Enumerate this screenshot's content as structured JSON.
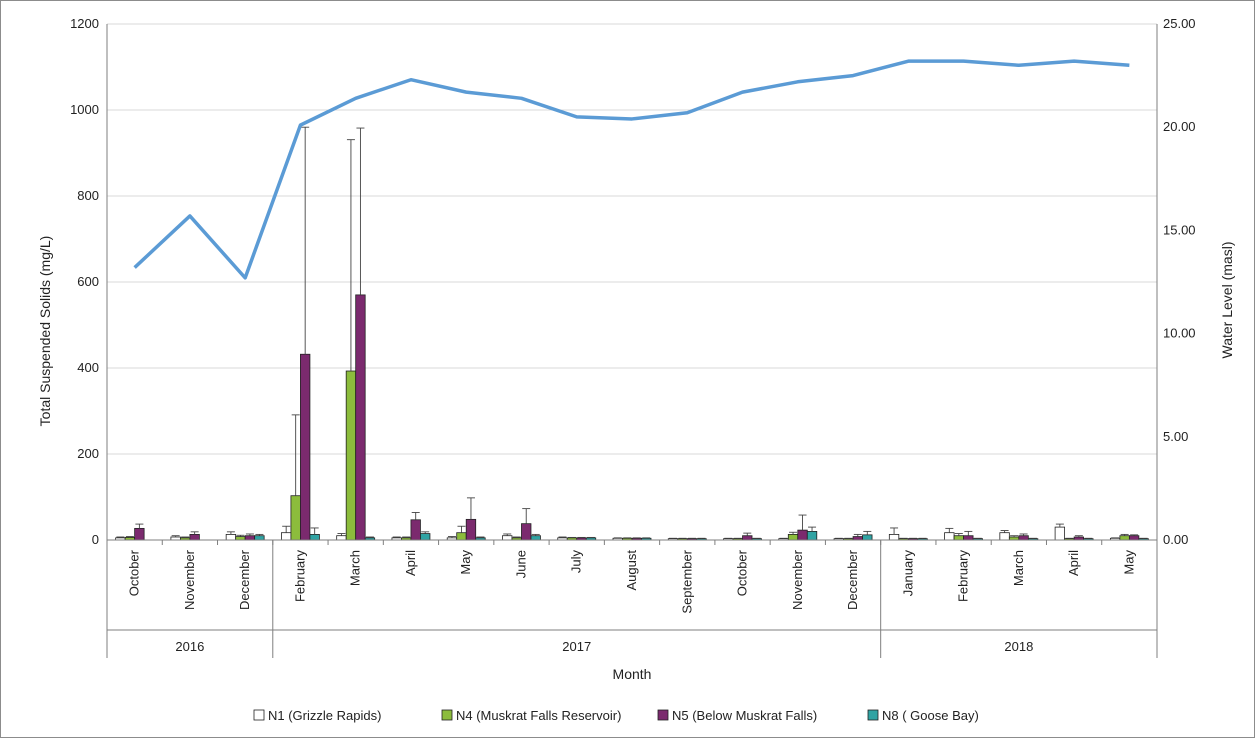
{
  "chart_data": {
    "type": "bar",
    "title": "",
    "xlabel": "Month",
    "ylabel": "Total Suspended Solids (mg/L)",
    "y2label": "Water Level (masl)",
    "ylim": [
      0,
      1200
    ],
    "y2lim": [
      0,
      25
    ],
    "yticks": [
      "0",
      "200",
      "400",
      "600",
      "800",
      "1000",
      "1200"
    ],
    "y2ticks": [
      "0.00",
      "5.00",
      "10.00",
      "15.00",
      "20.00",
      "25.00"
    ],
    "categories": [
      "October",
      "November",
      "December",
      "February",
      "March",
      "April",
      "May",
      "June",
      "July",
      "August",
      "September",
      "October",
      "November",
      "December",
      "January",
      "February",
      "March",
      "April",
      "May"
    ],
    "year_groups": [
      {
        "label": "2016",
        "count": 3
      },
      {
        "label": "2017",
        "count": 11
      },
      {
        "label": "2018",
        "count": 5
      }
    ],
    "series": [
      {
        "name": "N1 (Grizzle Rapids)",
        "color": "#ffffff",
        "values": [
          5,
          7,
          13,
          17,
          10,
          5,
          5,
          10,
          5,
          4,
          3,
          3,
          3,
          3,
          13,
          17,
          17,
          30,
          4
        ],
        "error": [
          2,
          3,
          6,
          15,
          5,
          2,
          3,
          4,
          2,
          1,
          1,
          1,
          1,
          1,
          15,
          10,
          5,
          7,
          1
        ]
      },
      {
        "name": "N4 (Muskrat Falls Reservoir)",
        "color": "#8cbc3c",
        "values": [
          6,
          5,
          8,
          103,
          393,
          5,
          17,
          5,
          5,
          4,
          3,
          3,
          13,
          3,
          3,
          10,
          7,
          3,
          10
        ],
        "error": [
          2,
          2,
          3,
          188,
          538,
          2,
          15,
          2,
          1,
          1,
          1,
          1,
          5,
          1,
          1,
          5,
          3,
          1,
          3
        ]
      },
      {
        "name": "N5 (Below Muskrat Falls)",
        "color": "#7b2a6e",
        "values": [
          27,
          13,
          10,
          432,
          570,
          47,
          48,
          38,
          5,
          4,
          3,
          10,
          23,
          8,
          3,
          10,
          10,
          7,
          10
        ],
        "error": [
          10,
          6,
          4,
          528,
          388,
          17,
          50,
          35,
          1,
          1,
          1,
          6,
          35,
          5,
          1,
          10,
          4,
          3,
          2
        ]
      },
      {
        "name": "N8 ( Goose Bay)",
        "color": "#2fa3a3",
        "values": [
          null,
          null,
          10,
          13,
          5,
          15,
          5,
          10,
          5,
          4,
          3,
          3,
          20,
          12,
          3,
          3,
          3,
          3,
          3
        ],
        "error": [
          null,
          null,
          3,
          15,
          2,
          4,
          2,
          3,
          1,
          1,
          1,
          1,
          10,
          8,
          1,
          1,
          1,
          1,
          1
        ]
      }
    ],
    "line": {
      "name": "Water Level",
      "color": "#5b9bd5",
      "axis": "right",
      "values": [
        13.2,
        15.7,
        12.7,
        20.1,
        21.4,
        22.3,
        21.7,
        21.4,
        20.5,
        20.4,
        20.7,
        21.7,
        22.2,
        22.5,
        23.2,
        23.2,
        23.0,
        23.2,
        23.0
      ]
    },
    "legend_position": "bottom",
    "grid": true
  }
}
